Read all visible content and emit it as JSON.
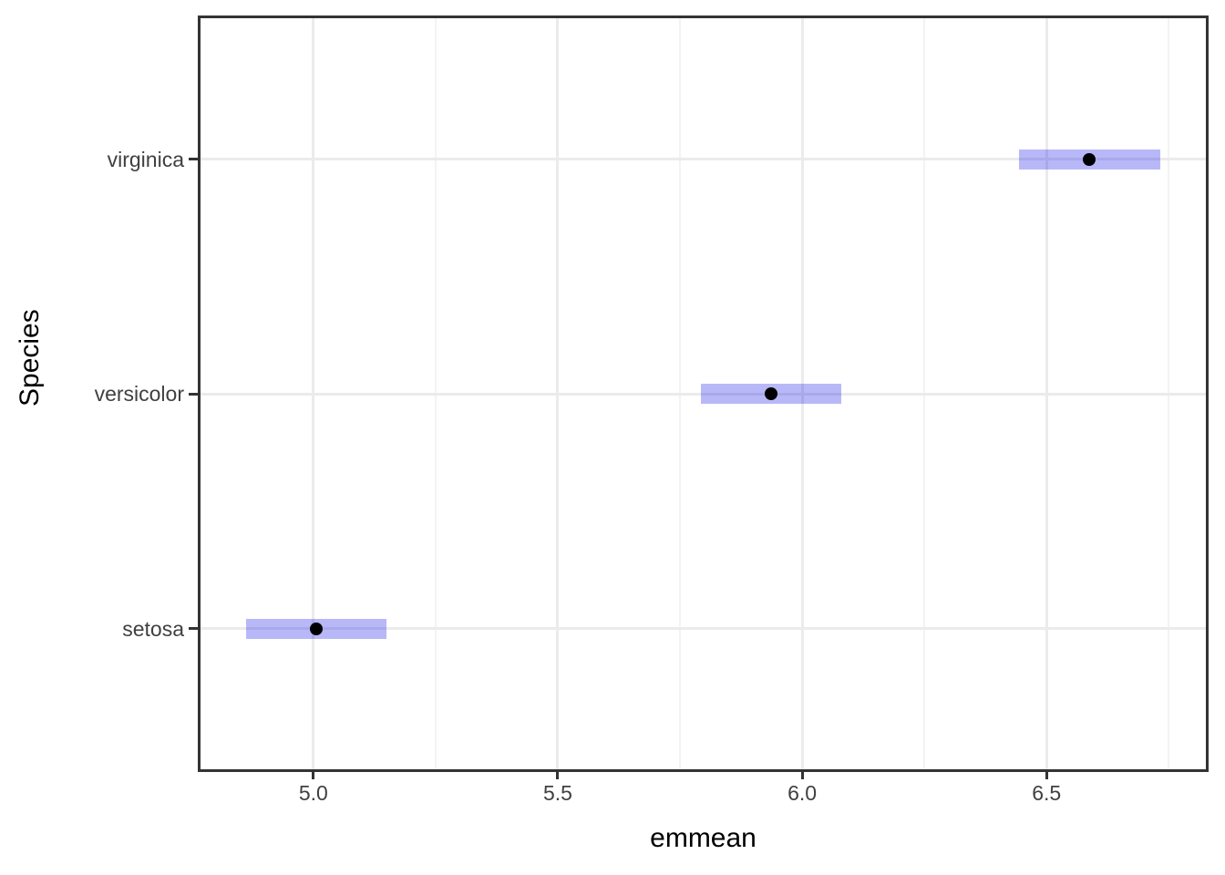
{
  "chart_data": {
    "type": "interval",
    "description": "Estimated marginal means (emmeans) of iris Species with 95% confidence interval bars",
    "xlabel": "emmean",
    "ylabel": "Species",
    "xlim": [
      4.769,
      6.826
    ],
    "x_major_ticks": [
      {
        "value": 5.0,
        "label": "5.0"
      },
      {
        "value": 5.5,
        "label": "5.5"
      },
      {
        "value": 6.0,
        "label": "6.0"
      },
      {
        "value": 6.5,
        "label": "6.5"
      }
    ],
    "x_minor_ticks": [
      5.25,
      5.75,
      6.25,
      6.75
    ],
    "categories": [
      "setosa",
      "versicolor",
      "virginica"
    ],
    "category_axis_order": "bottom-to-top",
    "series": [
      {
        "name": "setosa",
        "emmean": 5.006,
        "lower_cl": 4.862,
        "upper_cl": 5.15
      },
      {
        "name": "versicolor",
        "emmean": 5.936,
        "lower_cl": 5.792,
        "upper_cl": 6.08
      },
      {
        "name": "virginica",
        "emmean": 6.588,
        "lower_cl": 6.444,
        "upper_cl": 6.732
      }
    ],
    "legend": false,
    "grid": true,
    "colors": {
      "ci_fill": "rgba(0,0,235,0.28)",
      "point": "#000000",
      "grid_major": "#ebebeb",
      "grid_minor": "#f3f3f3",
      "panel_border": "#333333",
      "tick_mark": "#333333",
      "axis_text": "#404040",
      "axis_title": "#000000",
      "background": "#ffffff"
    }
  }
}
